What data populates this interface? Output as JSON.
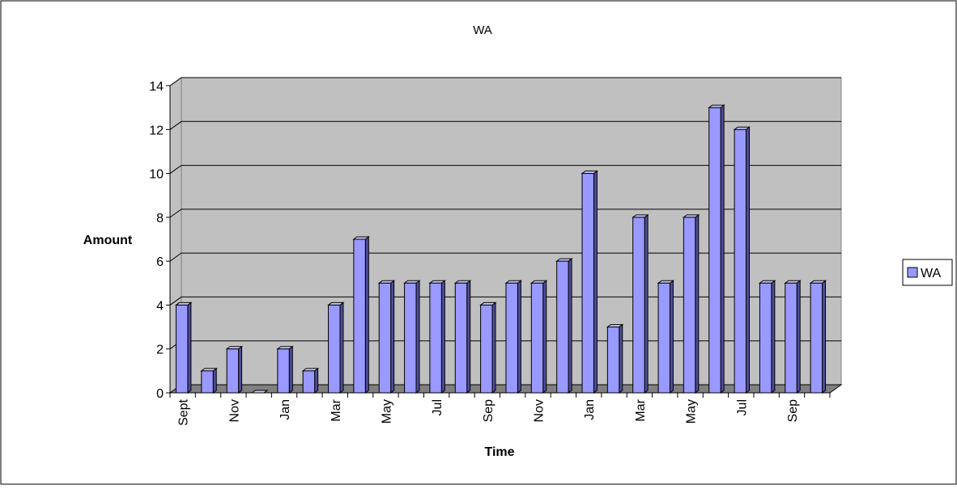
{
  "chart_data": {
    "type": "bar",
    "title": "WA",
    "xlabel": "Time",
    "ylabel": "Amount",
    "ylim": [
      0,
      14
    ],
    "yticks": [
      0,
      2,
      4,
      6,
      8,
      10,
      12,
      14
    ],
    "grid": true,
    "legend_position": "right",
    "categories": [
      "Sept",
      "",
      "Nov",
      "",
      "Jan",
      "",
      "Mar",
      "",
      "May",
      "",
      "Jul",
      "",
      "Sep",
      "",
      "Nov",
      "",
      "Jan",
      "",
      "Mar",
      "",
      "May",
      "",
      "Jul",
      "",
      "Sep",
      ""
    ],
    "series": [
      {
        "name": "WA",
        "values": [
          4,
          1,
          2,
          0,
          2,
          1,
          4,
          7,
          5,
          5,
          5,
          5,
          4,
          5,
          5,
          6,
          10,
          3,
          8,
          5,
          8,
          13,
          12,
          5,
          5,
          5
        ]
      }
    ],
    "colors": {
      "bar_front": "#9999ff",
      "bar_side": "#4d4d99",
      "bar_top": "#ccccff",
      "plot_wall": "#c0c0c0",
      "floor": "#808080",
      "gridline": "#000000"
    }
  }
}
